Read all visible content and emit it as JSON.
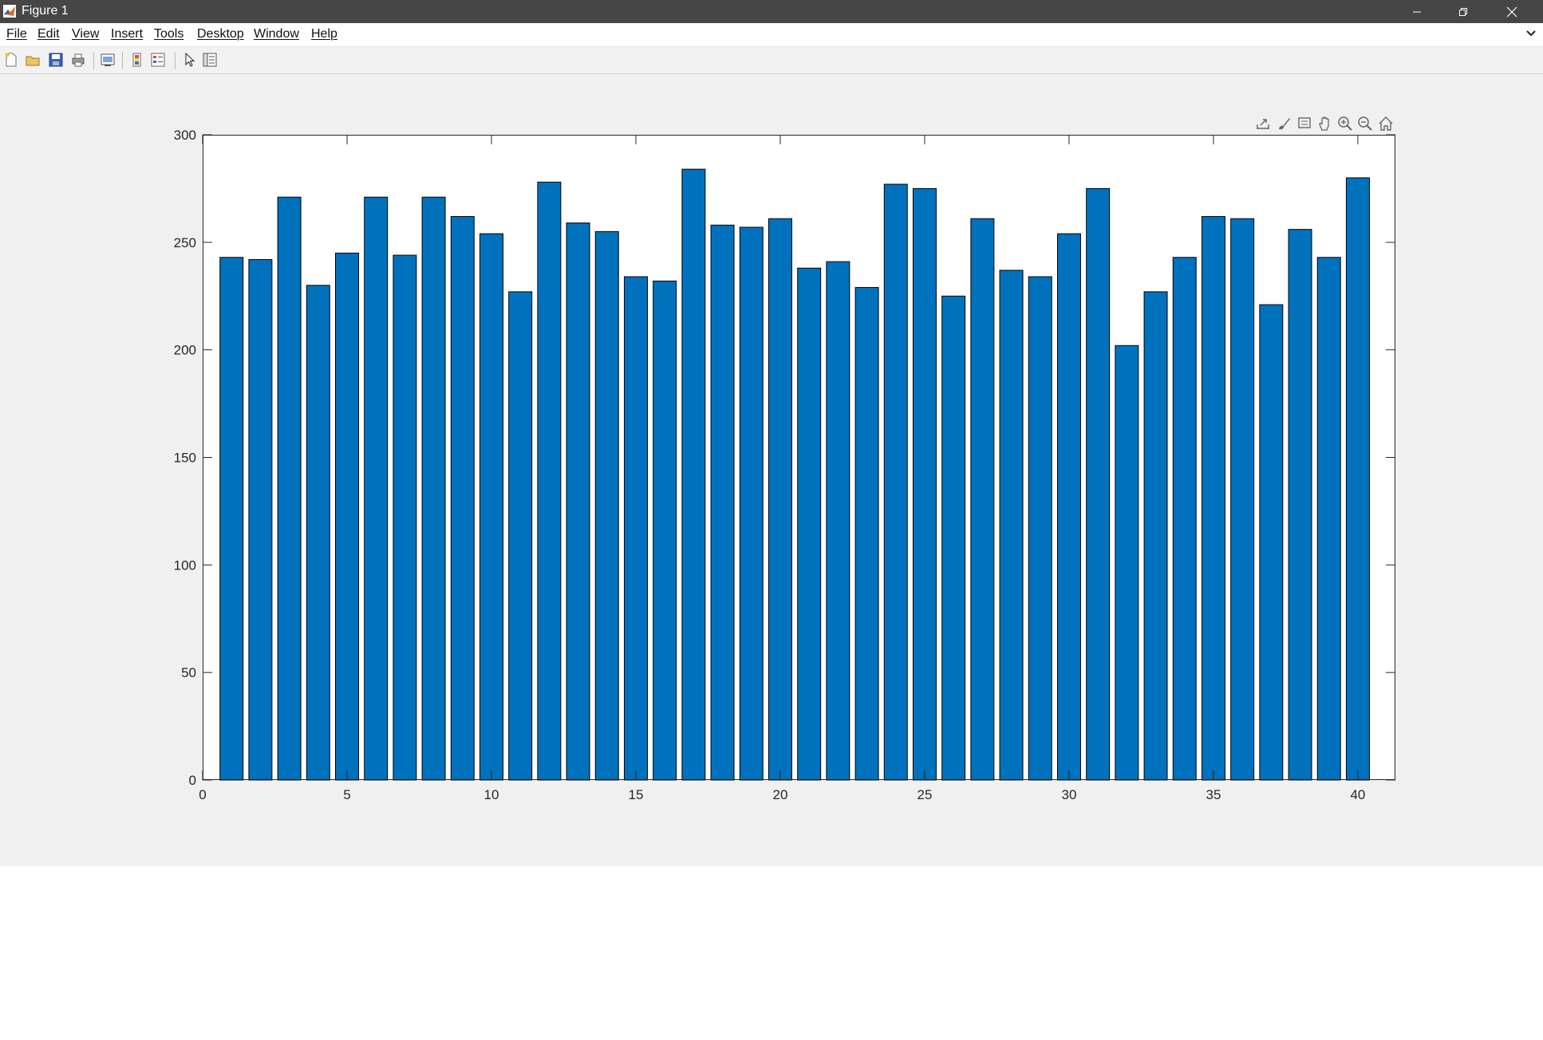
{
  "window": {
    "title": "Figure 1",
    "controls": [
      "minimize-icon",
      "restore-icon",
      "close-icon"
    ]
  },
  "menubar": {
    "items": [
      {
        "label": "File"
      },
      {
        "label": "Edit"
      },
      {
        "label": "View"
      },
      {
        "label": "Insert"
      },
      {
        "label": "Tools"
      },
      {
        "label": "Desktop"
      },
      {
        "label": "Window"
      },
      {
        "label": "Help"
      }
    ]
  },
  "toolbar": {
    "icons": [
      "new-figure-icon",
      "open-file-icon",
      "save-figure-icon",
      "print-figure-icon",
      "link-plot-icon",
      "colorbar-icon",
      "legend-icon",
      "edit-plot-icon",
      "property-inspector-icon"
    ]
  },
  "axes_toolbar": {
    "icons": [
      "export-icon",
      "brush-icon",
      "data-tips-icon",
      "pan-icon",
      "zoom-in-icon",
      "zoom-out-icon",
      "home-icon"
    ]
  },
  "colors": {
    "bar_fill": "#0072BD",
    "bar_edge": "#000000",
    "titlebar": "#464646",
    "figure_bg": "#F0F0F0"
  },
  "chart_data": {
    "type": "bar",
    "title": "",
    "xlabel": "",
    "ylabel": "",
    "x": [
      1,
      2,
      3,
      4,
      5,
      6,
      7,
      8,
      9,
      10,
      11,
      12,
      13,
      14,
      15,
      16,
      17,
      18,
      19,
      20,
      21,
      22,
      23,
      24,
      25,
      26,
      27,
      28,
      29,
      30,
      31,
      32,
      33,
      34,
      35,
      36,
      37,
      38,
      39,
      40
    ],
    "values": [
      243,
      242,
      271,
      230,
      245,
      271,
      244,
      271,
      262,
      254,
      227,
      278,
      259,
      255,
      234,
      232,
      284,
      258,
      257,
      261,
      238,
      241,
      229,
      277,
      275,
      225,
      261,
      237,
      234,
      254,
      275,
      202,
      227,
      243,
      262,
      261,
      221,
      256,
      243,
      280
    ],
    "xlim": [
      0,
      41.3
    ],
    "ylim": [
      0,
      300
    ],
    "xticks": [
      0,
      5,
      10,
      15,
      20,
      25,
      30,
      35,
      40
    ],
    "yticks": [
      0,
      50,
      100,
      150,
      200,
      250,
      300
    ],
    "grid": false,
    "box": true
  }
}
